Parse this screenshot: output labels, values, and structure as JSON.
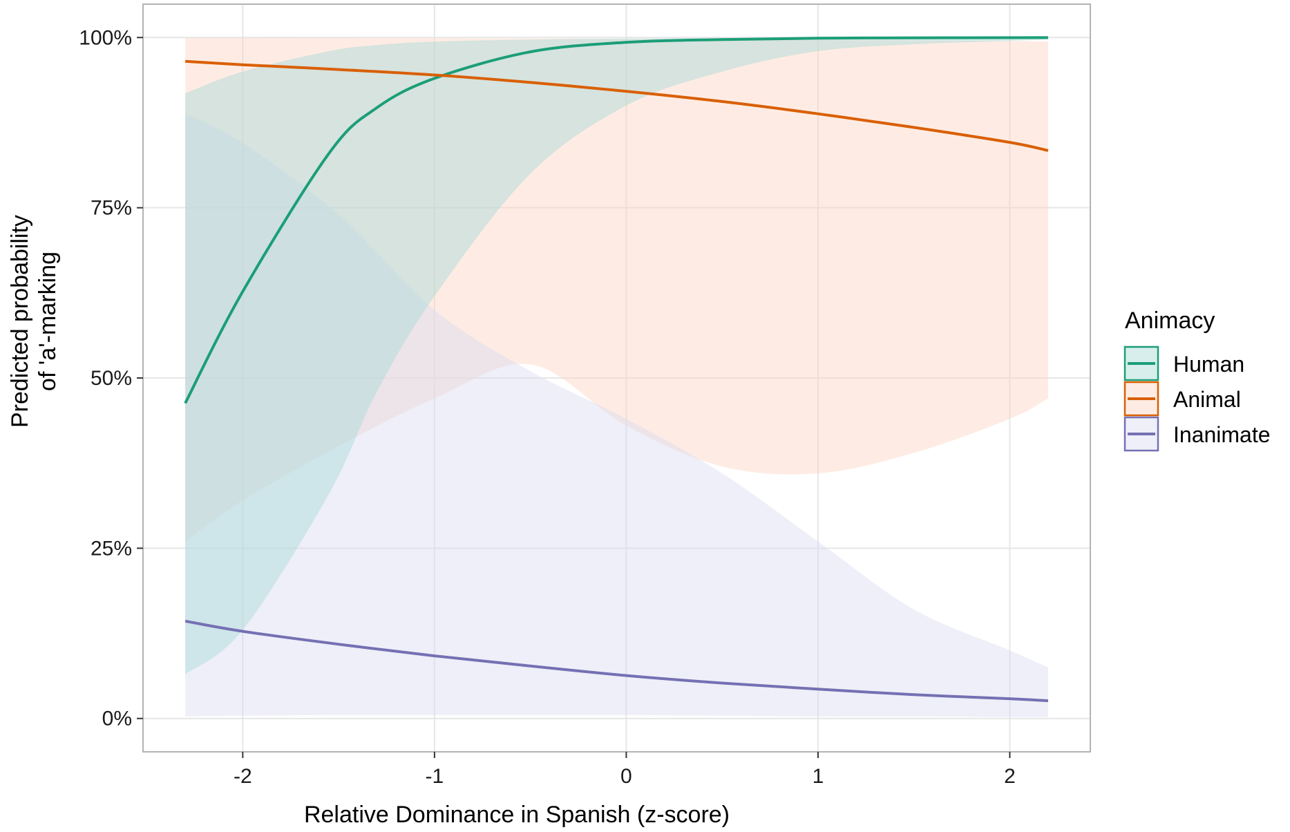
{
  "chart_data": {
    "type": "line",
    "title": "",
    "xlabel": "Relative Dominance in Spanish (z-score)",
    "ylabel_lines": [
      "Predicted probability",
      "of 'a'-marking"
    ],
    "xlim": [
      -2.52,
      2.42
    ],
    "ylim": [
      -0.049,
      1.049
    ],
    "x_ticks": [
      -2,
      -1,
      0,
      1,
      2
    ],
    "x_tick_labels": [
      "-2",
      "-1",
      "0",
      "1",
      "2"
    ],
    "y_ticks": [
      0,
      0.25,
      0.5,
      0.75,
      1.0
    ],
    "y_tick_labels": [
      "0%",
      "25%",
      "50%",
      "75%",
      "100%"
    ],
    "grid": true,
    "legend": {
      "title": "Animacy",
      "position": "right"
    },
    "series": [
      {
        "name": "Human",
        "color": "#1b9e77",
        "fill": "#a6d9d6",
        "x": [
          -2.3,
          -2.0,
          -1.55,
          -1.3,
          -1.0,
          -0.5,
          0.0,
          0.5,
          1.0,
          1.5,
          2.0,
          2.2
        ],
        "y": [
          0.463,
          0.627,
          0.83,
          0.897,
          0.94,
          0.979,
          0.993,
          0.997,
          0.999,
          0.9995,
          0.9998,
          0.9999
        ],
        "lower": [
          0.065,
          0.13,
          0.33,
          0.48,
          0.62,
          0.8,
          0.9,
          0.95,
          0.98,
          0.99,
          0.995,
          0.997
        ],
        "upper": [
          0.918,
          0.95,
          0.98,
          0.989,
          0.994,
          0.997,
          0.9985,
          0.9993,
          0.9997,
          0.9998,
          0.9999,
          0.9999
        ]
      },
      {
        "name": "Animal",
        "color": "#d95f02",
        "fill": "#fcd5c4",
        "x": [
          -2.3,
          -2.0,
          -1.5,
          -1.0,
          -0.5,
          0.0,
          0.5,
          1.0,
          1.5,
          2.0,
          2.2
        ],
        "y": [
          0.965,
          0.96,
          0.953,
          0.945,
          0.934,
          0.921,
          0.906,
          0.888,
          0.868,
          0.846,
          0.834
        ],
        "lower": [
          0.26,
          0.32,
          0.4,
          0.47,
          0.52,
          0.43,
          0.37,
          0.36,
          0.39,
          0.44,
          0.47
        ],
        "upper": [
          0.9995,
          0.9995,
          0.9993,
          0.999,
          0.9985,
          0.998,
          0.9975,
          0.997,
          0.996,
          0.995,
          0.994
        ]
      },
      {
        "name": "Inanimate",
        "color": "#7570b3",
        "fill": "#d9dcef",
        "x": [
          -2.3,
          -2.0,
          -1.5,
          -1.0,
          -0.5,
          0.0,
          0.5,
          1.0,
          1.5,
          2.0,
          2.2
        ],
        "y": [
          0.143,
          0.128,
          0.109,
          0.092,
          0.077,
          0.063,
          0.052,
          0.043,
          0.035,
          0.029,
          0.026
        ],
        "lower": [
          0.003,
          0.004,
          0.005,
          0.005,
          0.005,
          0.005,
          0.004,
          0.003,
          0.003,
          0.002,
          0.002
        ],
        "upper": [
          0.888,
          0.845,
          0.74,
          0.6,
          0.51,
          0.44,
          0.36,
          0.26,
          0.16,
          0.1,
          0.075
        ]
      }
    ]
  }
}
